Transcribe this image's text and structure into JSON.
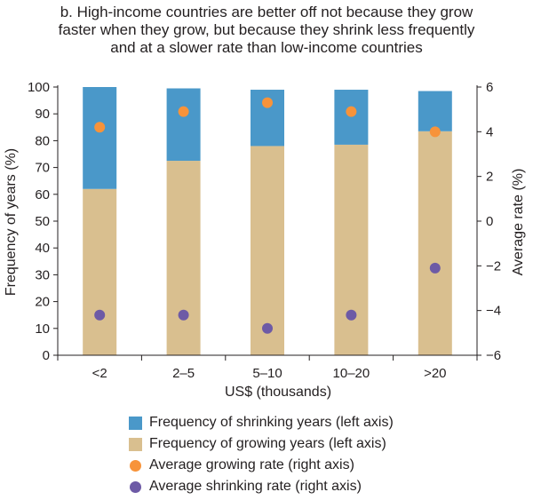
{
  "chart_data": {
    "type": "bar",
    "title": "b. High-income countries are better off not because they grow\nfaster when they grow, but because they shrink less frequently\nand at a slower rate than low-income countries",
    "xlabel": "US$ (thousands)",
    "ylabel_left": "Frequency of years (%)",
    "ylabel_right": "Average rate (%)",
    "categories": [
      "<2",
      "2–5",
      "5–10",
      "10–20",
      ">20"
    ],
    "ylim_left": [
      0,
      100
    ],
    "yticks_left": [
      0,
      10,
      20,
      30,
      40,
      50,
      60,
      70,
      80,
      90,
      100
    ],
    "ylim_right": [
      -6,
      6
    ],
    "yticks_right": [
      -6,
      -4,
      -2,
      0,
      2,
      4,
      6
    ],
    "stacked_bars": [
      {
        "name": "Frequency of growing years (left axis)",
        "color": "#d9bf8f",
        "values": [
          62,
          72.5,
          78,
          78.5,
          83.5
        ]
      },
      {
        "name": "Frequency of shrinking years (left axis)",
        "color": "#4a98c9",
        "values": [
          38,
          27,
          21,
          20.5,
          15
        ]
      }
    ],
    "point_series": [
      {
        "name": "Average growing rate (right axis)",
        "color": "#f7933a",
        "values": [
          4.2,
          4.9,
          5.3,
          4.9,
          4.0
        ]
      },
      {
        "name": "Average shrinking rate (right axis)",
        "color": "#6d5aa6",
        "values": [
          -4.2,
          -4.2,
          -4.8,
          -4.2,
          -2.1
        ]
      }
    ],
    "grid": false,
    "legend_position": "bottom"
  },
  "legend": [
    {
      "label": "Frequency of shrinking years (left axis)",
      "color": "#4a98c9",
      "shape": "square"
    },
    {
      "label": "Frequency of growing years (left axis)",
      "color": "#d9bf8f",
      "shape": "square"
    },
    {
      "label": "Average growing rate (right axis)",
      "color": "#f7933a",
      "shape": "circle"
    },
    {
      "label": "Average shrinking rate (right axis)",
      "color": "#6d5aa6",
      "shape": "circle"
    }
  ]
}
